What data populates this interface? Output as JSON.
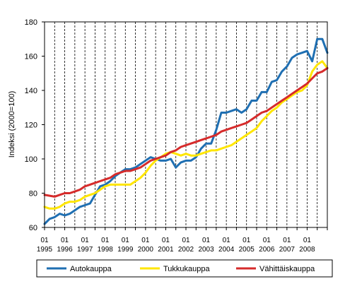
{
  "chart_data": {
    "type": "line",
    "ylabel": "Indeksi (2000=100)",
    "ylim": [
      60,
      180
    ],
    "yticks": [
      60,
      80,
      100,
      120,
      140,
      160,
      180
    ],
    "xlim": [
      1995.0,
      2009.0
    ],
    "year_ticks": [
      {
        "year": 1995,
        "month": "01",
        "label": "1995"
      },
      {
        "year": 1996,
        "month": "01",
        "label": "1996"
      },
      {
        "year": 1997,
        "month": "01",
        "label": "1997"
      },
      {
        "year": 1998,
        "month": "01",
        "label": "1998"
      },
      {
        "year": 1999,
        "month": "01",
        "label": "1999"
      },
      {
        "year": 2000,
        "month": "01",
        "label": "2000"
      },
      {
        "year": 2001,
        "month": "01",
        "label": "2001"
      },
      {
        "year": 2002,
        "month": "01",
        "label": "2002"
      },
      {
        "year": 2003,
        "month": "01",
        "label": "2003"
      },
      {
        "year": 2004,
        "month": "01",
        "label": "2004"
      },
      {
        "year": 2005,
        "month": "01",
        "label": "2005"
      },
      {
        "year": 2006,
        "month": "01",
        "label": "2006"
      },
      {
        "year": 2007,
        "month": "01",
        "label": "2007"
      },
      {
        "year": 2008,
        "month": "01",
        "label": "2008"
      }
    ],
    "grid": "vertical dashed lines at half-year intervals",
    "legend_position": "bottom",
    "series": [
      {
        "name": "Autokauppa",
        "color": "#1f6fb2",
        "points": [
          [
            1995.0,
            62
          ],
          [
            1995.25,
            65
          ],
          [
            1995.5,
            66
          ],
          [
            1995.75,
            68
          ],
          [
            1996.0,
            67
          ],
          [
            1996.25,
            68
          ],
          [
            1996.5,
            70
          ],
          [
            1996.75,
            72
          ],
          [
            1997.0,
            73
          ],
          [
            1997.25,
            74
          ],
          [
            1997.5,
            79
          ],
          [
            1997.75,
            84
          ],
          [
            1998.0,
            85
          ],
          [
            1998.25,
            87
          ],
          [
            1998.5,
            90
          ],
          [
            1998.75,
            92
          ],
          [
            1999.0,
            94
          ],
          [
            1999.25,
            94
          ],
          [
            1999.5,
            95
          ],
          [
            1999.75,
            97
          ],
          [
            2000.0,
            99
          ],
          [
            2000.25,
            101
          ],
          [
            2000.5,
            100
          ],
          [
            2000.75,
            99
          ],
          [
            2001.0,
            99
          ],
          [
            2001.25,
            100
          ],
          [
            2001.5,
            95
          ],
          [
            2001.75,
            98
          ],
          [
            2002.0,
            99
          ],
          [
            2002.25,
            99
          ],
          [
            2002.5,
            101
          ],
          [
            2002.75,
            106
          ],
          [
            2003.0,
            109
          ],
          [
            2003.25,
            109
          ],
          [
            2003.5,
            117
          ],
          [
            2003.75,
            127
          ],
          [
            2004.0,
            127
          ],
          [
            2004.25,
            128
          ],
          [
            2004.5,
            129
          ],
          [
            2004.75,
            127
          ],
          [
            2005.0,
            129
          ],
          [
            2005.25,
            134
          ],
          [
            2005.5,
            134
          ],
          [
            2005.75,
            139
          ],
          [
            2006.0,
            139
          ],
          [
            2006.25,
            145
          ],
          [
            2006.5,
            146
          ],
          [
            2006.75,
            151
          ],
          [
            2007.0,
            154
          ],
          [
            2007.25,
            159
          ],
          [
            2007.5,
            161
          ],
          [
            2007.75,
            162
          ],
          [
            2008.0,
            163
          ],
          [
            2008.25,
            157
          ],
          [
            2008.5,
            170
          ],
          [
            2008.75,
            170
          ],
          [
            2009.0,
            162
          ]
        ]
      },
      {
        "name": "Tukkukauppa",
        "color": "#ffe600",
        "points": [
          [
            1995.0,
            72
          ],
          [
            1995.25,
            71
          ],
          [
            1995.5,
            71
          ],
          [
            1995.75,
            72
          ],
          [
            1996.0,
            74
          ],
          [
            1996.25,
            75
          ],
          [
            1996.5,
            75
          ],
          [
            1996.75,
            76
          ],
          [
            1997.0,
            78
          ],
          [
            1997.25,
            79
          ],
          [
            1997.5,
            80
          ],
          [
            1997.75,
            82
          ],
          [
            1998.0,
            84
          ],
          [
            1998.25,
            85
          ],
          [
            1998.5,
            85
          ],
          [
            1998.75,
            85
          ],
          [
            1999.0,
            85
          ],
          [
            1999.25,
            85
          ],
          [
            1999.5,
            87
          ],
          [
            1999.75,
            89
          ],
          [
            2000.0,
            92
          ],
          [
            2000.25,
            96
          ],
          [
            2000.5,
            99
          ],
          [
            2000.75,
            101
          ],
          [
            2001.0,
            103
          ],
          [
            2001.25,
            104
          ],
          [
            2001.5,
            103
          ],
          [
            2001.75,
            102
          ],
          [
            2002.0,
            103
          ],
          [
            2002.25,
            102
          ],
          [
            2002.5,
            102
          ],
          [
            2002.75,
            103
          ],
          [
            2003.0,
            104
          ],
          [
            2003.25,
            105
          ],
          [
            2003.5,
            105
          ],
          [
            2003.75,
            106
          ],
          [
            2004.0,
            107
          ],
          [
            2004.25,
            108
          ],
          [
            2004.5,
            110
          ],
          [
            2004.75,
            112
          ],
          [
            2005.0,
            114
          ],
          [
            2005.25,
            116
          ],
          [
            2005.5,
            118
          ],
          [
            2005.75,
            122
          ],
          [
            2006.0,
            125
          ],
          [
            2006.25,
            128
          ],
          [
            2006.5,
            130
          ],
          [
            2006.75,
            133
          ],
          [
            2007.0,
            135
          ],
          [
            2007.25,
            137
          ],
          [
            2007.5,
            139
          ],
          [
            2007.75,
            140
          ],
          [
            2008.0,
            143
          ],
          [
            2008.25,
            151
          ],
          [
            2008.5,
            155
          ],
          [
            2008.75,
            157
          ],
          [
            2009.0,
            153
          ]
        ]
      },
      {
        "name": "Vähittäiskauppa",
        "color": "#d62b2b",
        "points": [
          [
            1995.0,
            79
          ],
          [
            1995.25,
            78.5
          ],
          [
            1995.5,
            78
          ],
          [
            1995.75,
            79
          ],
          [
            1996.0,
            80
          ],
          [
            1996.25,
            80
          ],
          [
            1996.5,
            81
          ],
          [
            1996.75,
            82
          ],
          [
            1997.0,
            84
          ],
          [
            1997.25,
            85
          ],
          [
            1997.5,
            86
          ],
          [
            1997.75,
            87
          ],
          [
            1998.0,
            88
          ],
          [
            1998.25,
            89
          ],
          [
            1998.5,
            91
          ],
          [
            1998.75,
            92
          ],
          [
            1999.0,
            93
          ],
          [
            1999.25,
            93
          ],
          [
            1999.5,
            94
          ],
          [
            1999.75,
            95
          ],
          [
            2000.0,
            97
          ],
          [
            2000.25,
            99
          ],
          [
            2000.5,
            100
          ],
          [
            2000.75,
            101
          ],
          [
            2001.0,
            102
          ],
          [
            2001.25,
            104
          ],
          [
            2001.5,
            105
          ],
          [
            2001.75,
            107
          ],
          [
            2002.0,
            108
          ],
          [
            2002.25,
            109
          ],
          [
            2002.5,
            110
          ],
          [
            2002.75,
            111
          ],
          [
            2003.0,
            112
          ],
          [
            2003.25,
            113
          ],
          [
            2003.5,
            114
          ],
          [
            2003.75,
            116
          ],
          [
            2004.0,
            117
          ],
          [
            2004.25,
            118
          ],
          [
            2004.5,
            119
          ],
          [
            2004.75,
            120
          ],
          [
            2005.0,
            121
          ],
          [
            2005.25,
            123
          ],
          [
            2005.5,
            125
          ],
          [
            2005.75,
            127
          ],
          [
            2006.0,
            128
          ],
          [
            2006.25,
            130
          ],
          [
            2006.5,
            132
          ],
          [
            2006.75,
            134
          ],
          [
            2007.0,
            136
          ],
          [
            2007.25,
            138
          ],
          [
            2007.5,
            140
          ],
          [
            2007.75,
            142
          ],
          [
            2008.0,
            144
          ],
          [
            2008.25,
            147
          ],
          [
            2008.5,
            150
          ],
          [
            2008.75,
            151
          ],
          [
            2009.0,
            153
          ]
        ]
      }
    ]
  }
}
